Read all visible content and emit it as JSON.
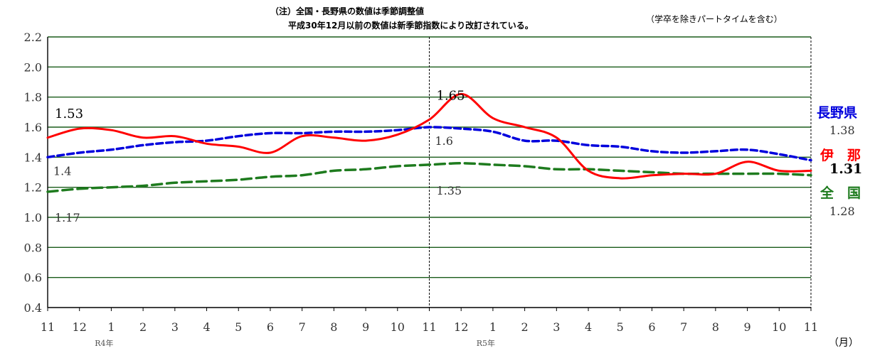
{
  "notes": {
    "line1": "（注）全国・長野県の数値は季節調整値",
    "line2": "平成30年12月以前の数値は新季節指数により改訂されている。",
    "subtitle": "（学卒を除きパートタイムを含む）"
  },
  "colors": {
    "nagano": "#0000dd",
    "ina": "#ff0000",
    "zenkoku": "#1e7b1e",
    "grid": "#1a5c1a"
  },
  "legend": {
    "nagano": {
      "name": "長野県",
      "value": "1.38"
    },
    "ina": {
      "name": "伊　那",
      "value": "1.31"
    },
    "zenkoku": {
      "name": "全　国",
      "value": "1.28"
    }
  },
  "unit_label": "（月）",
  "chart_data": {
    "type": "line",
    "x": [
      "11",
      "12",
      "1",
      "2",
      "3",
      "4",
      "5",
      "6",
      "7",
      "8",
      "9",
      "10",
      "11",
      "12",
      "1",
      "2",
      "3",
      "4",
      "5",
      "6",
      "7",
      "8",
      "9",
      "10",
      "11"
    ],
    "year_labels": [
      {
        "index": 2,
        "text": "R4年"
      },
      {
        "index": 14,
        "text": "R5年"
      }
    ],
    "ylim": [
      0.4,
      2.2
    ],
    "yticks": [
      "0.4",
      "0.6",
      "0.8",
      "1.0",
      "1.2",
      "1.4",
      "1.6",
      "1.8",
      "2.0",
      "2.2"
    ],
    "grid": true,
    "series": [
      {
        "key": "nagano",
        "name": "長野県",
        "values": [
          1.4,
          1.43,
          1.45,
          1.48,
          1.5,
          1.51,
          1.54,
          1.56,
          1.56,
          1.57,
          1.57,
          1.58,
          1.6,
          1.59,
          1.57,
          1.51,
          1.51,
          1.48,
          1.47,
          1.44,
          1.43,
          1.44,
          1.45,
          1.42,
          1.38
        ]
      },
      {
        "key": "ina",
        "name": "伊　那",
        "values": [
          1.53,
          1.59,
          1.58,
          1.53,
          1.54,
          1.49,
          1.47,
          1.43,
          1.54,
          1.53,
          1.51,
          1.55,
          1.65,
          1.82,
          1.66,
          1.6,
          1.53,
          1.31,
          1.26,
          1.28,
          1.29,
          1.29,
          1.37,
          1.31,
          1.31
        ]
      },
      {
        "key": "zenkoku",
        "name": "全　国",
        "values": [
          1.17,
          1.19,
          1.2,
          1.21,
          1.23,
          1.24,
          1.25,
          1.27,
          1.28,
          1.31,
          1.32,
          1.34,
          1.35,
          1.36,
          1.35,
          1.34,
          1.32,
          1.32,
          1.31,
          1.3,
          1.29,
          1.29,
          1.29,
          1.29,
          1.28
        ]
      }
    ],
    "annotations": [
      {
        "series": "ina",
        "index": 0,
        "text": "1.53"
      },
      {
        "series": "nagano",
        "index": 0,
        "text": "1.4"
      },
      {
        "series": "zenkoku",
        "index": 0,
        "text": "1.17"
      },
      {
        "series": "ina",
        "index": 12,
        "text": "1.65"
      },
      {
        "series": "nagano",
        "index": 12,
        "text": "1.6"
      },
      {
        "series": "zenkoku",
        "index": 12,
        "text": "1.35"
      }
    ]
  }
}
